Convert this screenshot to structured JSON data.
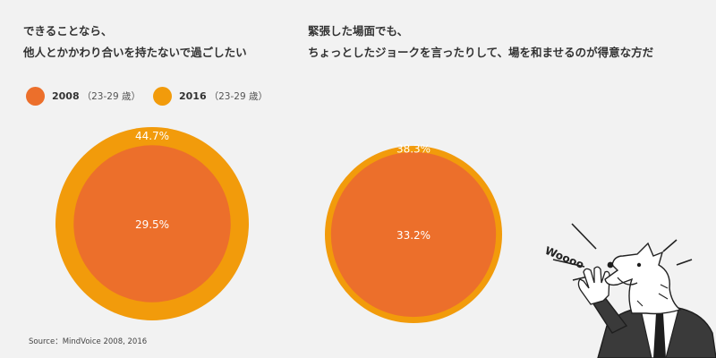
{
  "questions": [
    {
      "line1": "できることなら、",
      "line2": "他人とかかわり合いを持たないで過ごしたい"
    },
    {
      "line1": "緊張した場面でも、",
      "line2": "ちょっとしたジョークを言ったりして、場を和ませるのが得意な方だ"
    }
  ],
  "legend": [
    {
      "year": "2008",
      "age": "（23-29 歳）",
      "color": "#ec6f2b"
    },
    {
      "year": "2016",
      "age": "（23-29 歳）",
      "color": "#f29b0b"
    }
  ],
  "source": "Source：MindVoice 2008, 2016",
  "illustration": {
    "speech_text": "Woooo"
  },
  "colors": {
    "series_2008": "#ec6f2b",
    "series_2016": "#f29b0b",
    "background": "#f2f2f2",
    "label_text": "#ffffff"
  },
  "chart_data": [
    {
      "type": "nested-circle",
      "title": "できることなら、他人とかかわり合いを持たないで過ごしたい",
      "series": [
        {
          "name": "2016",
          "value": 44.7,
          "label": "44.7%"
        },
        {
          "name": "2008",
          "value": 29.5,
          "label": "29.5%"
        }
      ]
    },
    {
      "type": "nested-circle",
      "title": "緊張した場面でも、ちょっとしたジョークを言ったりして、場を和ませるのが得意な方だ",
      "series": [
        {
          "name": "2016",
          "value": 38.3,
          "label": "38.3%"
        },
        {
          "name": "2008",
          "value": 33.2,
          "label": "33.2%"
        }
      ]
    }
  ]
}
